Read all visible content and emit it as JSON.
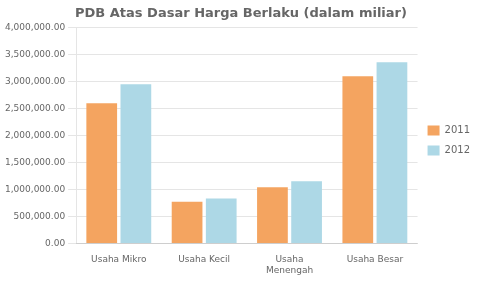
{
  "chart_data": {
    "type": "bar",
    "title": "PDB Atas Dasar Harga Berlaku (dalam miliar)",
    "categories": [
      "Usaha Mikro",
      "Usaha Kecil",
      "Usaha\nMenengah",
      "Usaha Besar"
    ],
    "series": [
      {
        "name": "2011",
        "color": "#F4A460",
        "values": [
          2600000,
          770000,
          1040000,
          3100000
        ]
      },
      {
        "name": "2012",
        "color": "#ADD8E6",
        "values": [
          2950000,
          830000,
          1150000,
          3360000
        ]
      }
    ],
    "ylim": [
      0,
      4000000
    ],
    "yticks": [
      {
        "value": 0,
        "label": "0.00"
      },
      {
        "value": 500000,
        "label": "500,000.00"
      },
      {
        "value": 1000000,
        "label": "1,000,000.00"
      },
      {
        "value": 1500000,
        "label": "1,500,000.00"
      },
      {
        "value": 2000000,
        "label": "2,000,000.00"
      },
      {
        "value": 2500000,
        "label": "2,500,000.00"
      },
      {
        "value": 3000000,
        "label": "3,000,000.00"
      },
      {
        "value": 3500000,
        "label": "3,500,000.00"
      },
      {
        "value": 4000000,
        "label": "4,000,000.00"
      }
    ],
    "grid": true,
    "legend": "right"
  }
}
